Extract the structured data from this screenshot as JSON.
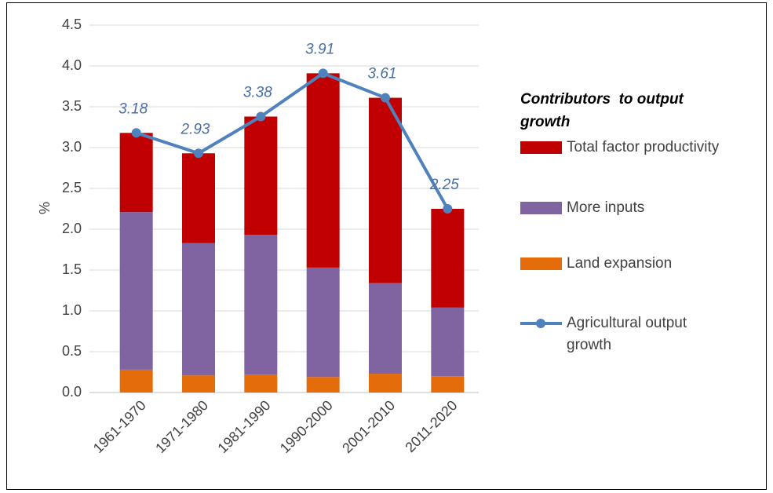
{
  "chart_data": {
    "type": "bar",
    "y_label": "%",
    "legend_title": "Contributors  to output growth",
    "categories": [
      "1961-1970",
      "1971-1980",
      "1981-1990",
      "1990-2000",
      "2001-2010",
      "2011-2020"
    ],
    "series": [
      {
        "name": "Total factor productivity",
        "type": "bar",
        "color": "#c00000",
        "values": [
          0.97,
          1.1,
          1.45,
          2.38,
          2.27,
          1.21
        ]
      },
      {
        "name": "More inputs",
        "type": "bar",
        "color": "#8064a2",
        "values": [
          1.93,
          1.62,
          1.71,
          1.34,
          1.11,
          0.84
        ]
      },
      {
        "name": "Land expansion",
        "type": "bar",
        "color": "#e46c0a",
        "values": [
          0.28,
          0.21,
          0.22,
          0.19,
          0.23,
          0.2
        ]
      },
      {
        "name": "Agricultural output growth",
        "type": "line",
        "color": "#4f81bd",
        "values": [
          3.18,
          2.93,
          3.38,
          3.91,
          3.61,
          2.25
        ]
      }
    ],
    "ylim": [
      0,
      4.5
    ],
    "yticks": [
      {
        "value": 0,
        "label": "0.0"
      },
      0.5,
      {
        "value": 1,
        "label": "1.0"
      },
      1.5,
      {
        "value": 2,
        "label": "2.0"
      },
      2.5,
      {
        "value": 3,
        "label": "3.0"
      },
      3.5,
      {
        "value": 4,
        "label": "4.0"
      },
      4.5
    ],
    "grid": true,
    "legend": "right"
  }
}
